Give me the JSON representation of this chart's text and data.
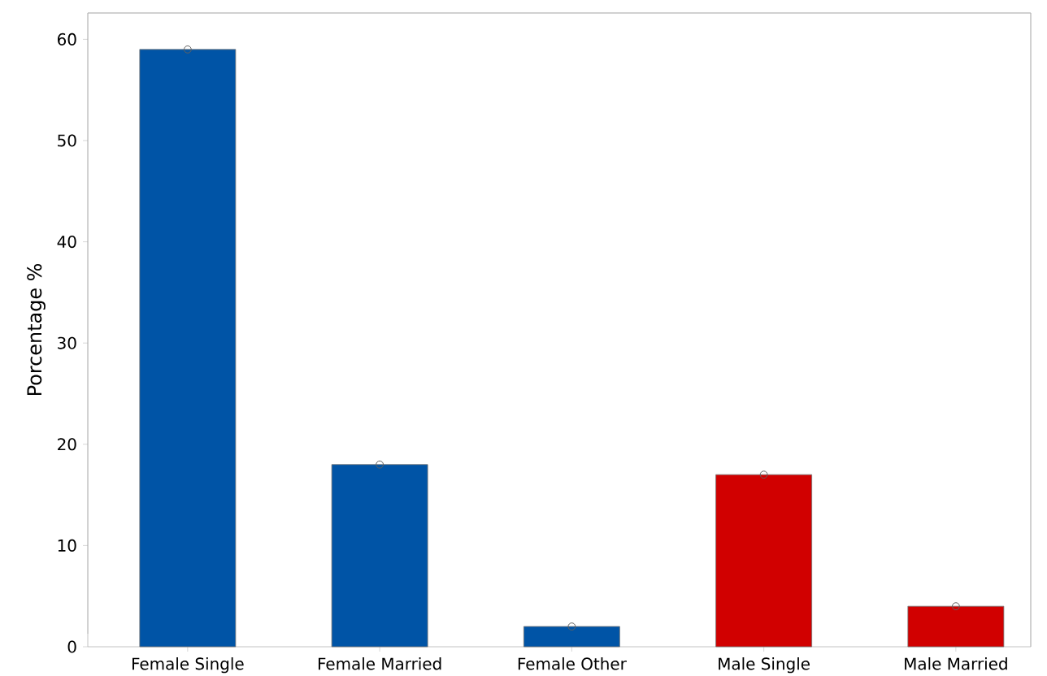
{
  "chart_data": {
    "type": "bar",
    "ylabel": "Porcentage %",
    "categories": [
      "Female Single",
      "Female Married",
      "Female Other",
      "Male Single",
      "Male Married"
    ],
    "values": [
      59,
      18,
      2,
      17,
      4
    ],
    "colors": [
      "#0054a6",
      "#0054a6",
      "#0054a6",
      "#d10000",
      "#d10000"
    ],
    "series": [
      {
        "type": "scatter",
        "x": [
          "Female Single",
          "Female Married",
          "Female Other",
          "Male Single",
          "Male Married"
        ],
        "values": [
          59,
          18,
          2,
          17,
          4
        ],
        "color": "#606060",
        "marker": "circle"
      }
    ],
    "ylim": [
      0,
      62.6
    ],
    "yticks": [
      0,
      10,
      20,
      30,
      40,
      50,
      60
    ],
    "grid": false
  }
}
